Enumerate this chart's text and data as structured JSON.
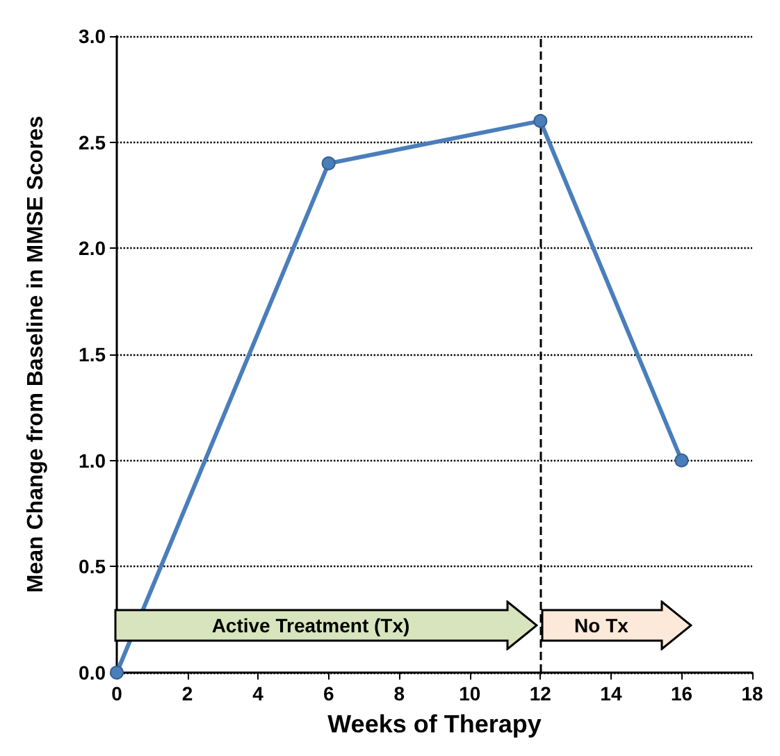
{
  "chart_data": {
    "type": "line",
    "xlabel": "Weeks of Therapy",
    "ylabel": "Mean Change from Baseline in MMSE Scores",
    "x": [
      0,
      6,
      12,
      16
    ],
    "series": [
      {
        "color": "#4a7ebb",
        "values": [
          0,
          2.4,
          2.6,
          1.0
        ]
      }
    ],
    "xlim": [
      0,
      18
    ],
    "xticks": [
      0,
      2,
      4,
      6,
      8,
      10,
      12,
      14,
      16,
      18
    ],
    "ylim": [
      0,
      3
    ],
    "yticks": [
      {
        "value": 0,
        "label": "0.0"
      },
      {
        "value": 0.5,
        "label": "0.5"
      },
      {
        "value": 1,
        "label": "1.0"
      },
      {
        "value": 1.5,
        "label": "1.5"
      },
      {
        "value": 2,
        "label": "2.0"
      },
      {
        "value": 2.5,
        "label": "2.5"
      },
      {
        "value": 3,
        "label": "3.0"
      }
    ],
    "grid": "y",
    "marker": "circle",
    "line_style": "solid",
    "ref_lines": [
      {
        "axis": "x",
        "value": 12,
        "line_style": "dashed",
        "color": "#000000"
      }
    ],
    "annotations": [
      "Active Treatment (Tx)",
      "No Tx"
    ]
  }
}
